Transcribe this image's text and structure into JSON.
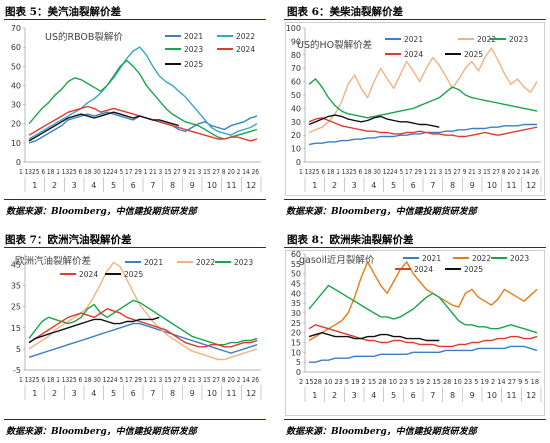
{
  "figures": [
    {
      "caption": "图表 5：美汽油裂解价差",
      "source": "数据来源：Bloomberg，中信建投期货研发部"
    },
    {
      "caption": "图表 6：美柴油裂解价差",
      "source": "数据来源：Bloomberg，中信建投期货研发部"
    },
    {
      "caption": "图表 7：欧洲汽油裂解价差",
      "source": "数据来源：Bloomberg，中信建投期货研发部"
    },
    {
      "caption": "图表 8：欧洲柴油裂解价差",
      "source": "数据来源：Bloomberg，中信建投期货研发部"
    }
  ],
  "chart_data": [
    {
      "type": "line",
      "title": "US的RBOB裂解价",
      "ylim": [
        0,
        70
      ],
      "yticks": [
        0,
        10,
        20,
        30,
        40,
        50,
        60,
        70
      ],
      "tick_labels_top": "1 1325 6 18 1 1325 6 18 30 1224 5 17 29 1 21 3 15 27 9 21 3 15 27 8 20 2 14 26",
      "tick_labels_bottom": [
        "1",
        "2",
        "3",
        "4",
        "5",
        "6",
        "7",
        "8",
        "9",
        "10",
        "11",
        "12"
      ],
      "legend_position": "top-right",
      "series": [
        {
          "name": "2021",
          "color": "#3a7fc4",
          "values": [
            10,
            11,
            13,
            15,
            17,
            19,
            22,
            23,
            24,
            25,
            24,
            25,
            26,
            25,
            24,
            23,
            22,
            24,
            23,
            22,
            21,
            20,
            19,
            17,
            16,
            18,
            20,
            21,
            19,
            18,
            17,
            19,
            20,
            21,
            23,
            24
          ]
        },
        {
          "name": "2022",
          "color": "#33a7c8",
          "values": [
            12,
            14,
            16,
            18,
            20,
            22,
            24,
            26,
            28,
            31,
            33,
            36,
            40,
            44,
            49,
            54,
            58,
            60,
            56,
            50,
            45,
            42,
            40,
            37,
            34,
            30,
            26,
            22,
            18,
            16,
            15,
            14,
            16,
            17,
            18,
            20
          ]
        },
        {
          "name": "2023",
          "color": "#1aa54a",
          "values": [
            20,
            24,
            28,
            31,
            35,
            38,
            42,
            44,
            43,
            41,
            39,
            37,
            40,
            45,
            50,
            53,
            50,
            46,
            40,
            36,
            32,
            28,
            25,
            23,
            21,
            20,
            19,
            17,
            15,
            13,
            12,
            13,
            14,
            15,
            16,
            17
          ]
        },
        {
          "name": "2024",
          "color": "#e03a2f",
          "values": [
            14,
            16,
            18,
            20,
            22,
            24,
            26,
            27,
            28,
            29,
            28,
            26,
            27,
            28,
            27,
            26,
            25,
            24,
            23,
            22,
            21,
            20,
            19,
            18,
            17,
            16,
            15,
            14,
            13,
            12,
            12,
            13,
            13,
            12,
            11,
            12
          ]
        },
        {
          "name": "2025",
          "color": "#111111",
          "values": [
            11,
            13,
            15,
            17,
            19,
            21,
            23,
            24,
            25,
            24,
            23,
            24,
            25,
            26,
            25,
            24,
            23,
            24,
            23,
            22,
            22,
            21,
            20,
            19
          ]
        }
      ]
    },
    {
      "type": "line",
      "title": "US的HO裂解价差",
      "ylim": [
        0,
        100
      ],
      "yticks": [
        0,
        10,
        20,
        30,
        40,
        50,
        60,
        70,
        80,
        90,
        100
      ],
      "tick_labels_top": "1 1325 6 18 1 1325 6 18 30 1224 5 17 29 1 21 3 15 27 9 21 3 15 27 8 20 2 14 26",
      "tick_labels_bottom": [
        "1",
        "2",
        "3",
        "4",
        "5",
        "6",
        "7",
        "8",
        "9",
        "10",
        "11",
        "12"
      ],
      "legend_position": "top-right",
      "series": [
        {
          "name": "2021",
          "color": "#3a7fc4",
          "values": [
            13,
            14,
            14,
            15,
            15,
            16,
            16,
            17,
            17,
            18,
            18,
            19,
            19,
            19,
            20,
            20,
            21,
            21,
            22,
            22,
            22,
            23,
            23,
            24,
            24,
            25,
            25,
            25,
            26,
            26,
            27,
            27,
            27,
            28,
            28,
            28
          ]
        },
        {
          "name": "2022",
          "color": "#f3b183",
          "values": [
            22,
            24,
            26,
            30,
            36,
            45,
            58,
            65,
            55,
            48,
            60,
            70,
            62,
            55,
            65,
            75,
            68,
            60,
            70,
            78,
            72,
            64,
            55,
            62,
            70,
            75,
            68,
            78,
            85,
            76,
            66,
            58,
            62,
            56,
            52,
            60
          ]
        },
        {
          "name": "2023",
          "color": "#1aa54a",
          "values": [
            58,
            62,
            56,
            48,
            42,
            38,
            36,
            35,
            34,
            33,
            34,
            35,
            36,
            37,
            38,
            39,
            40,
            42,
            44,
            46,
            48,
            52,
            56,
            54,
            50,
            48,
            47,
            46,
            45,
            44,
            43,
            42,
            41,
            40,
            39,
            38
          ]
        },
        {
          "name": "2024",
          "color": "#e03a2f",
          "values": [
            30,
            32,
            33,
            31,
            29,
            27,
            26,
            25,
            24,
            23,
            23,
            22,
            22,
            21,
            21,
            22,
            22,
            23,
            22,
            21,
            21,
            20,
            20,
            19,
            19,
            20,
            21,
            22,
            21,
            20,
            21,
            22,
            23,
            24,
            25,
            26
          ]
        },
        {
          "name": "2025",
          "color": "#111111",
          "values": [
            28,
            30,
            32,
            34,
            35,
            34,
            32,
            31,
            30,
            31,
            33,
            34,
            32,
            31,
            30,
            30,
            29,
            28,
            28,
            27,
            26
          ]
        }
      ]
    },
    {
      "type": "line",
      "title": "欧洲汽油裂解价差",
      "ylim": [
        -5,
        50
      ],
      "yticks": [
        -5,
        5,
        15,
        25,
        35,
        45
      ],
      "tick_labels_top": "1 1325 6 18 1 1325 6 18 30 1224 5 17 29 1 21 3 15 27 9 21 3 15 27 8 20 2 14 26",
      "tick_labels_bottom": [
        "1",
        "2",
        "3",
        "4",
        "5",
        "6",
        "7",
        "8",
        "9",
        "10",
        "11",
        "12"
      ],
      "legend_position": "top-right",
      "series": [
        {
          "name": "2021",
          "color": "#3a7fc4",
          "values": [
            1,
            2,
            3,
            4,
            5,
            6,
            7,
            8,
            9,
            10,
            11,
            12,
            13,
            14,
            15,
            16,
            17,
            17,
            16,
            15,
            14,
            13,
            12,
            11,
            10,
            9,
            8,
            7,
            6,
            5,
            4,
            3,
            4,
            5,
            6,
            7
          ]
        },
        {
          "name": "2022",
          "color": "#f3b183",
          "values": [
            5,
            7,
            9,
            11,
            14,
            16,
            18,
            20,
            22,
            25,
            30,
            36,
            42,
            46,
            44,
            38,
            32,
            26,
            22,
            18,
            15,
            12,
            10,
            8,
            6,
            4,
            3,
            2,
            1,
            0,
            0,
            1,
            2,
            3,
            4,
            5
          ]
        },
        {
          "name": "2023",
          "color": "#1aa54a",
          "values": [
            10,
            14,
            18,
            20,
            19,
            18,
            17,
            18,
            20,
            24,
            26,
            22,
            20,
            22,
            24,
            26,
            28,
            27,
            25,
            23,
            21,
            19,
            17,
            15,
            13,
            11,
            10,
            9,
            8,
            7,
            7,
            8,
            8,
            9,
            9,
            10
          ]
        },
        {
          "name": "2024",
          "color": "#e03a2f",
          "values": [
            8,
            10,
            12,
            14,
            16,
            18,
            20,
            21,
            22,
            21,
            20,
            22,
            24,
            23,
            22,
            20,
            19,
            18,
            17,
            16,
            15,
            14,
            12,
            10,
            8,
            7,
            6,
            6,
            7,
            7,
            6,
            6,
            7,
            8,
            8,
            9
          ]
        },
        {
          "name": "2025",
          "color": "#111111",
          "values": [
            8,
            10,
            11,
            12,
            13,
            14,
            15,
            16,
            17,
            18,
            19,
            19,
            18,
            17,
            17,
            18,
            18,
            19,
            19,
            19,
            20
          ]
        }
      ]
    },
    {
      "type": "line",
      "title": "gasoil近月裂解价",
      "ylim": [
        0,
        60
      ],
      "yticks": [
        0,
        5,
        10,
        15,
        20,
        25,
        30,
        35,
        40,
        45,
        50,
        55,
        60
      ],
      "tick_labels_top": "2 1528 10 23 5 19 2 15 28 10 23 5 19 2 15 28 10 23 5 19 2 14 27 9 5 18",
      "tick_labels_bottom": [
        "1",
        "2",
        "3",
        "4",
        "5",
        "6",
        "7",
        "8",
        "9",
        "10",
        "11",
        "12"
      ],
      "legend_position": "top-right",
      "series": [
        {
          "name": "2021",
          "color": "#3a7fc4",
          "values": [
            5,
            5,
            6,
            6,
            7,
            7,
            7,
            8,
            8,
            8,
            8,
            9,
            9,
            9,
            9,
            9,
            10,
            10,
            10,
            10,
            10,
            11,
            11,
            11,
            11,
            11,
            12,
            12,
            12,
            12,
            12,
            13,
            13,
            13,
            12,
            11
          ]
        },
        {
          "name": "2022",
          "color": "#e87c10",
          "values": [
            16,
            18,
            20,
            22,
            24,
            26,
            30,
            38,
            48,
            56,
            50,
            44,
            40,
            46,
            52,
            56,
            50,
            46,
            42,
            40,
            38,
            36,
            34,
            33,
            40,
            42,
            38,
            36,
            34,
            37,
            42,
            40,
            38,
            36,
            39,
            42
          ]
        },
        {
          "name": "2023",
          "color": "#1aa54a",
          "values": [
            32,
            36,
            40,
            44,
            42,
            40,
            38,
            36,
            34,
            32,
            30,
            28,
            28,
            27,
            28,
            30,
            32,
            35,
            38,
            40,
            38,
            34,
            30,
            26,
            24,
            24,
            23,
            23,
            22,
            22,
            23,
            24,
            23,
            22,
            21,
            20
          ]
        },
        {
          "name": "2024",
          "color": "#e03a2f",
          "values": [
            22,
            24,
            23,
            22,
            21,
            20,
            19,
            18,
            17,
            16,
            16,
            15,
            15,
            16,
            16,
            15,
            15,
            14,
            14,
            14,
            13,
            13,
            13,
            14,
            14,
            15,
            15,
            16,
            16,
            17,
            17,
            18,
            18,
            17,
            17,
            18
          ]
        },
        {
          "name": "2025",
          "color": "#111111",
          "values": [
            18,
            19,
            20,
            19,
            18,
            18,
            18,
            17,
            17,
            18,
            18,
            19,
            19,
            18,
            18,
            17,
            17,
            17,
            16,
            16,
            16
          ]
        }
      ]
    }
  ]
}
